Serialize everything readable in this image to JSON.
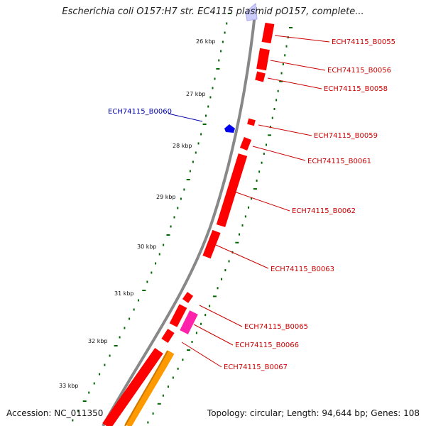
{
  "title": "Escherichia coli O157:H7 str. EC4115 plasmid pO157, complete...",
  "accession": "Accession: NC_011350",
  "topology_summary": "Topology: circular; Length: 94,644 bp; Genes: 108",
  "ticks": [
    "26 kbp",
    "27 kbp",
    "28 kbp",
    "29 kbp",
    "30 kbp",
    "31 kbp",
    "32 kbp",
    "33 kbp"
  ],
  "genes_forward": [
    "ECH74115_B0055",
    "ECH74115_B0056",
    "ECH74115_B0058",
    "ECH74115_B0059",
    "ECH74115_B0061",
    "ECH74115_B0062",
    "ECH74115_B0063",
    "ECH74115_B0065",
    "ECH74115_B0066",
    "ECH74115_B0067"
  ],
  "genes_reverse": [
    "ECH74115_B0060"
  ],
  "colors": {
    "cds": "#ff0000",
    "cds_dark": "#b00000",
    "pseudo": "#ff22aa",
    "orange": "#ff9900",
    "reverse": "#0000ee",
    "label_forward": "#cc0000",
    "label_reverse": "#0000aa",
    "backbone": "#888888",
    "ticks": "#006600"
  }
}
